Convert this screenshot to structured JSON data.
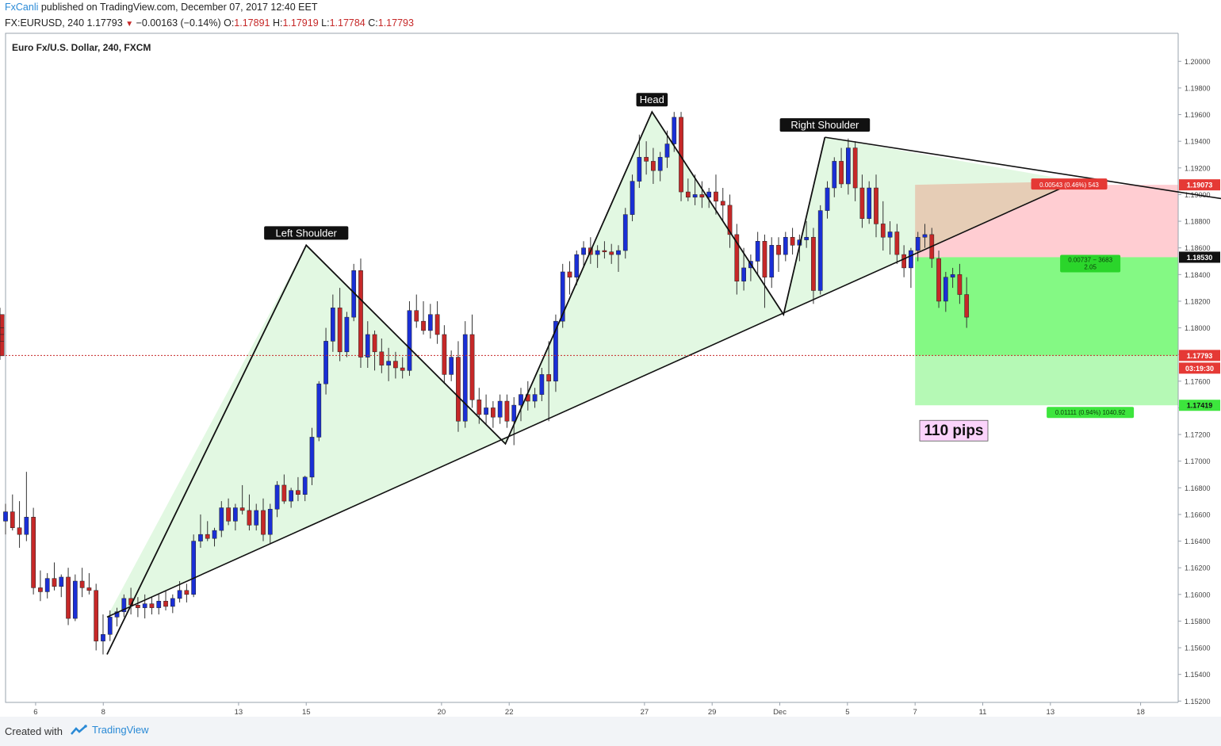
{
  "header": {
    "author": "FxCanli",
    "published": "published on TradingView.com, December 07, 2017 12:40 EET",
    "symbol": "FX:EURUSD, 240",
    "last": "1.17793",
    "change": "−0.00163 (−0.14%)",
    "open_label": "O:",
    "open": "1.17891",
    "high_label": "H:",
    "high": "1.17919",
    "low_label": "L:",
    "low": "1.17784",
    "close_label": "C:",
    "close": "1.17793"
  },
  "footer": {
    "created_label": "Created with",
    "brand": "TradingView",
    "icon": "tradingview-logo-icon"
  },
  "colors": {
    "bull": "#1a2fd6",
    "bear": "#c62828",
    "wick": "#333333",
    "pattern_fill": "#dff7df",
    "stop_zone": "#ffcdd2",
    "stop_overlap": "#e6cdb6",
    "target_zone": "#84f984",
    "target_zone_light": "#b5f9b5",
    "axis_bg": "#ffffff",
    "price_line": "#c62828"
  },
  "chart_data": {
    "type": "candlestick",
    "title": "Euro Fx/U.S. Dollar, 240, FXCM",
    "ylim": [
      1.1519,
      1.2021
    ],
    "y_ticks": [
      1.152,
      1.154,
      1.156,
      1.158,
      1.16,
      1.162,
      1.164,
      1.166,
      1.168,
      1.17,
      1.172,
      1.174,
      1.176,
      1.178,
      1.18,
      1.182,
      1.184,
      1.186,
      1.188,
      1.19,
      1.192,
      1.194,
      1.196,
      1.198,
      1.2
    ],
    "x_ticks": [
      "6",
      "8",
      "13",
      "15",
      "20",
      "22",
      "27",
      "29",
      "Dec",
      "5",
      "7",
      "11",
      "13",
      "18"
    ],
    "x_tick_index": [
      8,
      26,
      62,
      80,
      116,
      134,
      170,
      188,
      206,
      224,
      242,
      260,
      278,
      302
    ],
    "x_range_bars": [
      0,
      312
    ],
    "candles": [
      [
        1.1655,
        1.1668,
        1.1645,
        1.1662
      ],
      [
        1.1662,
        1.1675,
        1.1648,
        1.165
      ],
      [
        1.165,
        1.167,
        1.1635,
        1.1645
      ],
      [
        1.1645,
        1.1692,
        1.164,
        1.1658
      ],
      [
        1.1658,
        1.1665,
        1.16,
        1.1605
      ],
      [
        1.1605,
        1.1618,
        1.1595,
        1.1602
      ],
      [
        1.1602,
        1.1616,
        1.1597,
        1.1612
      ],
      [
        1.1612,
        1.1624,
        1.1603,
        1.1606
      ],
      [
        1.1606,
        1.1615,
        1.1598,
        1.1613
      ],
      [
        1.1613,
        1.162,
        1.1577,
        1.1582
      ],
      [
        1.1582,
        1.1615,
        1.158,
        1.161
      ],
      [
        1.161,
        1.162,
        1.1598,
        1.1605
      ],
      [
        1.1605,
        1.1616,
        1.16,
        1.1603
      ],
      [
        1.1603,
        1.1608,
        1.1558,
        1.1565
      ],
      [
        1.1565,
        1.1585,
        1.1555,
        1.157
      ],
      [
        1.157,
        1.1588,
        1.1565,
        1.1583
      ],
      [
        1.1583,
        1.159,
        1.1576,
        1.1587
      ],
      [
        1.1587,
        1.16,
        1.1583,
        1.1597
      ],
      [
        1.1597,
        1.1605,
        1.1585,
        1.1592
      ],
      [
        1.1592,
        1.1598,
        1.1583,
        1.159
      ],
      [
        1.159,
        1.16,
        1.1582,
        1.1593
      ],
      [
        1.1593,
        1.1598,
        1.1585,
        1.159
      ],
      [
        1.159,
        1.16,
        1.1585,
        1.1595
      ],
      [
        1.1595,
        1.1603,
        1.1588,
        1.1591
      ],
      [
        1.1591,
        1.16,
        1.1586,
        1.1597
      ],
      [
        1.1597,
        1.161,
        1.1594,
        1.1603
      ],
      [
        1.1603,
        1.1608,
        1.1594,
        1.16
      ],
      [
        1.16,
        1.1645,
        1.1598,
        1.164
      ],
      [
        1.164,
        1.166,
        1.1635,
        1.1645
      ],
      [
        1.1645,
        1.1655,
        1.164,
        1.1642
      ],
      [
        1.1642,
        1.165,
        1.1636,
        1.1648
      ],
      [
        1.1648,
        1.167,
        1.1643,
        1.1665
      ],
      [
        1.1665,
        1.1672,
        1.1652,
        1.1655
      ],
      [
        1.1655,
        1.1668,
        1.1648,
        1.1665
      ],
      [
        1.1665,
        1.1682,
        1.166,
        1.1663
      ],
      [
        1.1663,
        1.1675,
        1.1648,
        1.1652
      ],
      [
        1.1652,
        1.1668,
        1.1648,
        1.1663
      ],
      [
        1.1663,
        1.1672,
        1.164,
        1.1645
      ],
      [
        1.1645,
        1.1668,
        1.1638,
        1.1664
      ],
      [
        1.1664,
        1.1685,
        1.1658,
        1.1682
      ],
      [
        1.1682,
        1.169,
        1.1668,
        1.167
      ],
      [
        1.167,
        1.168,
        1.1665,
        1.1678
      ],
      [
        1.1678,
        1.1688,
        1.167,
        1.1675
      ],
      [
        1.1675,
        1.1689,
        1.167,
        1.1688
      ],
      [
        1.1688,
        1.1725,
        1.1682,
        1.1718
      ],
      [
        1.1718,
        1.176,
        1.1715,
        1.1758
      ],
      [
        1.1758,
        1.18,
        1.175,
        1.179
      ],
      [
        1.179,
        1.1825,
        1.1782,
        1.1815
      ],
      [
        1.1815,
        1.183,
        1.1775,
        1.1782
      ],
      [
        1.1782,
        1.1812,
        1.1778,
        1.1808
      ],
      [
        1.1808,
        1.1848,
        1.1805,
        1.1843
      ],
      [
        1.1843,
        1.1852,
        1.177,
        1.1778
      ],
      [
        1.1778,
        1.1805,
        1.177,
        1.1795
      ],
      [
        1.1795,
        1.1798,
        1.1768,
        1.1782
      ],
      [
        1.1782,
        1.1792,
        1.1766,
        1.1772
      ],
      [
        1.1772,
        1.1785,
        1.176,
        1.1775
      ],
      [
        1.1775,
        1.1782,
        1.1762,
        1.177
      ],
      [
        1.177,
        1.1778,
        1.1762,
        1.1768
      ],
      [
        1.1768,
        1.182,
        1.1764,
        1.1813
      ],
      [
        1.1813,
        1.1825,
        1.18,
        1.1805
      ],
      [
        1.1805,
        1.182,
        1.1795,
        1.1798
      ],
      [
        1.1798,
        1.1818,
        1.1792,
        1.181
      ],
      [
        1.181,
        1.182,
        1.1788,
        1.1795
      ],
      [
        1.1795,
        1.1802,
        1.1758,
        1.1765
      ],
      [
        1.1765,
        1.1783,
        1.176,
        1.1778
      ],
      [
        1.1778,
        1.179,
        1.1722,
        1.173
      ],
      [
        1.173,
        1.1805,
        1.1725,
        1.1795
      ],
      [
        1.1795,
        1.181,
        1.174,
        1.1746
      ],
      [
        1.1746,
        1.1755,
        1.1728,
        1.1735
      ],
      [
        1.1735,
        1.175,
        1.1728,
        1.174
      ],
      [
        1.174,
        1.1745,
        1.1725,
        1.1733
      ],
      [
        1.1733,
        1.175,
        1.1728,
        1.1745
      ],
      [
        1.1745,
        1.175,
        1.1725,
        1.173
      ],
      [
        1.173,
        1.1748,
        1.1712,
        1.1742
      ],
      [
        1.1742,
        1.1755,
        1.173,
        1.175
      ],
      [
        1.175,
        1.176,
        1.1738,
        1.1745
      ],
      [
        1.1745,
        1.1755,
        1.174,
        1.175
      ],
      [
        1.175,
        1.177,
        1.1745,
        1.1765
      ],
      [
        1.1765,
        1.179,
        1.173,
        1.176
      ],
      [
        1.176,
        1.181,
        1.1752,
        1.1805
      ],
      [
        1.1805,
        1.1848,
        1.18,
        1.1842
      ],
      [
        1.1842,
        1.185,
        1.1825,
        1.1838
      ],
      [
        1.1838,
        1.1858,
        1.1832,
        1.1855
      ],
      [
        1.1855,
        1.1865,
        1.1845,
        1.186
      ],
      [
        1.186,
        1.1868,
        1.1848,
        1.1855
      ],
      [
        1.1855,
        1.1862,
        1.1845,
        1.1858
      ],
      [
        1.1858,
        1.1865,
        1.1852,
        1.1857
      ],
      [
        1.1857,
        1.1863,
        1.1848,
        1.1855
      ],
      [
        1.1855,
        1.1862,
        1.1842,
        1.1858
      ],
      [
        1.1858,
        1.189,
        1.1852,
        1.1885
      ],
      [
        1.1885,
        1.1915,
        1.188,
        1.191
      ],
      [
        1.191,
        1.1945,
        1.1905,
        1.1928
      ],
      [
        1.1928,
        1.194,
        1.1915,
        1.1925
      ],
      [
        1.1925,
        1.1935,
        1.1908,
        1.1918
      ],
      [
        1.1918,
        1.1932,
        1.191,
        1.1928
      ],
      [
        1.1928,
        1.1948,
        1.192,
        1.1938
      ],
      [
        1.1938,
        1.1962,
        1.1932,
        1.1958
      ],
      [
        1.1958,
        1.1962,
        1.1895,
        1.1902
      ],
      [
        1.1902,
        1.1912,
        1.1895,
        1.1898
      ],
      [
        1.1898,
        1.1915,
        1.1892,
        1.19
      ],
      [
        1.19,
        1.191,
        1.189,
        1.1898
      ],
      [
        1.1898,
        1.1905,
        1.189,
        1.1902
      ],
      [
        1.1902,
        1.1915,
        1.1885,
        1.1895
      ],
      [
        1.1895,
        1.1905,
        1.188,
        1.1892
      ],
      [
        1.1892,
        1.19,
        1.186,
        1.187
      ],
      [
        1.187,
        1.1878,
        1.1825,
        1.1835
      ],
      [
        1.1835,
        1.186,
        1.1828,
        1.1845
      ],
      [
        1.1845,
        1.1855,
        1.1835,
        1.185
      ],
      [
        1.185,
        1.1872,
        1.184,
        1.1865
      ],
      [
        1.1865,
        1.187,
        1.1815,
        1.1838
      ],
      [
        1.1838,
        1.1868,
        1.183,
        1.1862
      ],
      [
        1.1862,
        1.1868,
        1.1842,
        1.1855
      ],
      [
        1.1855,
        1.1872,
        1.185,
        1.1868
      ],
      [
        1.1868,
        1.1875,
        1.1855,
        1.1862
      ],
      [
        1.1862,
        1.187,
        1.185,
        1.1866
      ],
      [
        1.1866,
        1.188,
        1.186,
        1.1868
      ],
      [
        1.1868,
        1.1875,
        1.1818,
        1.1828
      ],
      [
        1.1828,
        1.1892,
        1.1825,
        1.1888
      ],
      [
        1.1888,
        1.191,
        1.1882,
        1.1905
      ],
      [
        1.1905,
        1.1928,
        1.1898,
        1.1925
      ],
      [
        1.1925,
        1.1935,
        1.1905,
        1.1908
      ],
      [
        1.1908,
        1.1942,
        1.19,
        1.1935
      ],
      [
        1.1935,
        1.194,
        1.1895,
        1.1905
      ],
      [
        1.1905,
        1.1915,
        1.1875,
        1.1882
      ],
      [
        1.1882,
        1.191,
        1.1878,
        1.1905
      ],
      [
        1.1905,
        1.1915,
        1.1868,
        1.1878
      ],
      [
        1.1878,
        1.1895,
        1.1858,
        1.1868
      ],
      [
        1.1868,
        1.188,
        1.1855,
        1.1872
      ],
      [
        1.1872,
        1.1878,
        1.1848,
        1.1855
      ],
      [
        1.1855,
        1.1862,
        1.1838,
        1.1845
      ],
      [
        1.1845,
        1.186,
        1.183,
        1.1858
      ],
      [
        1.1858,
        1.1872,
        1.185,
        1.1868
      ],
      [
        1.1868,
        1.1878,
        1.186,
        1.187
      ],
      [
        1.187,
        1.1875,
        1.1845,
        1.1852
      ],
      [
        1.1852,
        1.1858,
        1.1815,
        1.182
      ],
      [
        1.182,
        1.1842,
        1.1812,
        1.1838
      ],
      [
        1.1838,
        1.1845,
        1.183,
        1.184
      ],
      [
        1.184,
        1.1848,
        1.1818,
        1.1825
      ],
      [
        1.1825,
        1.1838,
        1.18,
        1.1808
      ],
      [
        1.1808,
        1.1815,
        1.1798,
        1.181
      ],
      [
        1.181,
        1.1815,
        1.178,
        1.1795
      ],
      [
        1.1795,
        1.1808,
        1.179,
        1.18
      ],
      [
        1.18,
        1.1806,
        1.1788,
        1.1795
      ],
      [
        1.1795,
        1.18,
        1.1788,
        1.179
      ],
      [
        1.179,
        1.1795,
        1.1776,
        1.1779
      ]
    ],
    "candle_start_index": [
      0,
      1,
      2,
      3,
      4,
      5,
      6,
      7,
      8,
      9,
      10,
      11,
      12,
      13,
      14,
      15,
      16,
      17,
      18,
      19,
      20,
      21,
      22,
      23,
      24,
      25,
      26,
      27,
      28,
      29,
      30,
      31,
      32,
      33,
      34,
      35,
      36,
      37,
      38,
      39,
      40,
      41,
      42,
      43,
      44,
      45,
      46,
      47,
      48,
      49,
      50,
      51,
      52,
      53,
      54,
      55,
      56,
      57,
      58,
      59,
      60,
      61,
      62,
      63,
      64,
      65,
      66,
      67,
      68,
      69,
      70,
      71,
      72,
      73,
      74,
      75,
      76,
      77,
      78,
      79,
      80,
      81,
      82,
      83,
      84,
      85,
      86,
      87,
      88,
      89,
      90,
      91,
      92,
      93,
      94,
      95,
      96,
      97,
      98,
      99,
      100,
      101,
      102,
      103,
      104,
      105,
      106,
      107,
      108,
      109,
      110,
      111,
      112,
      113,
      114,
      115,
      116,
      117,
      118,
      119,
      120,
      121,
      122,
      123,
      124,
      125,
      126,
      127,
      128,
      129,
      130,
      131,
      132,
      133,
      134,
      135,
      136,
      137,
      138
    ],
    "pattern_points": {
      "start": [
        27,
        1.1555
      ],
      "left_shoulder": [
        80,
        1.1862
      ],
      "neck_1": [
        133,
        1.1713
      ],
      "head": [
        172,
        1.1962
      ],
      "neck_2": [
        207,
        1.181
      ],
      "right_shoulder": [
        218,
        1.1943
      ],
      "neck_end": [
        242,
        1.1853
      ],
      "neckline_extension_end": [
        285,
        1.191
      ]
    },
    "neckline": {
      "from": [
        27,
        1.1583
      ],
      "to": [
        285,
        1.191
      ]
    },
    "upper_trend": {
      "from": [
        218,
        1.1943
      ],
      "to": [
        342,
        1.1897
      ]
    },
    "annotations": [
      "Left Shoulder",
      "Head",
      "Right Shoulder"
    ],
    "position": {
      "entry": 1.1853,
      "stop": 1.19073,
      "target": 1.17419,
      "stop_label": "0.00543 (0.46%) 543",
      "mid_label_1": "0.00737 − 3683",
      "mid_label_2": "2.05",
      "target_label": "0.01111 (0.94%) 1040.92",
      "pips_label": "110 pips",
      "start_bar": 242,
      "end_bar": 331
    },
    "price_tags": [
      {
        "value": "1.19073",
        "price": 1.19073,
        "bg": "#e53935",
        "color": "#ffffff"
      },
      {
        "value": "1.18530",
        "price": 1.1853,
        "bg": "#111111",
        "color": "#ffffff"
      },
      {
        "value": "1.17793",
        "price": 1.17793,
        "bg": "#e53935",
        "color": "#ffffff"
      },
      {
        "value": "03:19:30",
        "price": 1.176,
        "bg": "#e53935",
        "color": "#ffffff",
        "offset_rows": 1
      },
      {
        "value": "1.17419",
        "price": 1.17419,
        "bg": "#3de53d",
        "color": "#111111"
      }
    ],
    "current_price": 1.17793
  }
}
